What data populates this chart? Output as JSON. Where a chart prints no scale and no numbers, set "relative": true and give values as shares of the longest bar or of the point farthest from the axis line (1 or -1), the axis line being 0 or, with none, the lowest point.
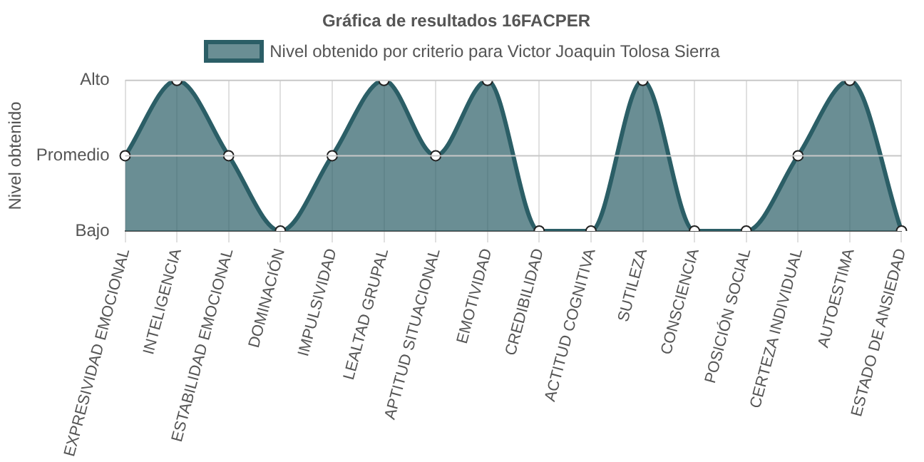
{
  "chart_data": {
    "type": "area",
    "title": "Gráfica de resultados 16FACPER",
    "ylabel": "Nivel obtenido",
    "categories": [
      "EXPRESIVIDAD EMOCIONAL",
      "INTELIGENCIA",
      "ESTABILIDAD EMOCIONAL",
      "DOMINACIÓN",
      "IMPULSIVIDAD",
      "LEALTAD GRUPAL",
      "APTITUD SITUACIONAL",
      "EMOTIVIDAD",
      "CREDIBILIDAD",
      "ACTITUD COGNITIVA",
      "SUTILEZA",
      "CONSCIENCIA",
      "POSICIÓN SOCIAL",
      "CERTEZA INDIVIDUAL",
      "AUTOESTIMA",
      "ESTADO DE ANSIEDAD"
    ],
    "series": [
      {
        "name": "Nivel obtenido por criterio para Victor Joaquin Tolosa Sierra",
        "color": "#2b5e66",
        "values": [
          0.5,
          1,
          0.5,
          0,
          0.5,
          1,
          0.5,
          1,
          0,
          0,
          1,
          0,
          0,
          0.5,
          1,
          0
        ]
      }
    ],
    "relative": true,
    "ref_lines": [
      {
        "axis": "y",
        "value": 1,
        "label": "Alto",
        "color": "#c8c8c8"
      },
      {
        "axis": "y",
        "value": 0.5,
        "label": "Promedio",
        "color": "#c8c8c8"
      }
    ],
    "annotations": [
      "Bajo"
    ],
    "grid": "x",
    "legend": "top",
    "marker": "circle"
  }
}
